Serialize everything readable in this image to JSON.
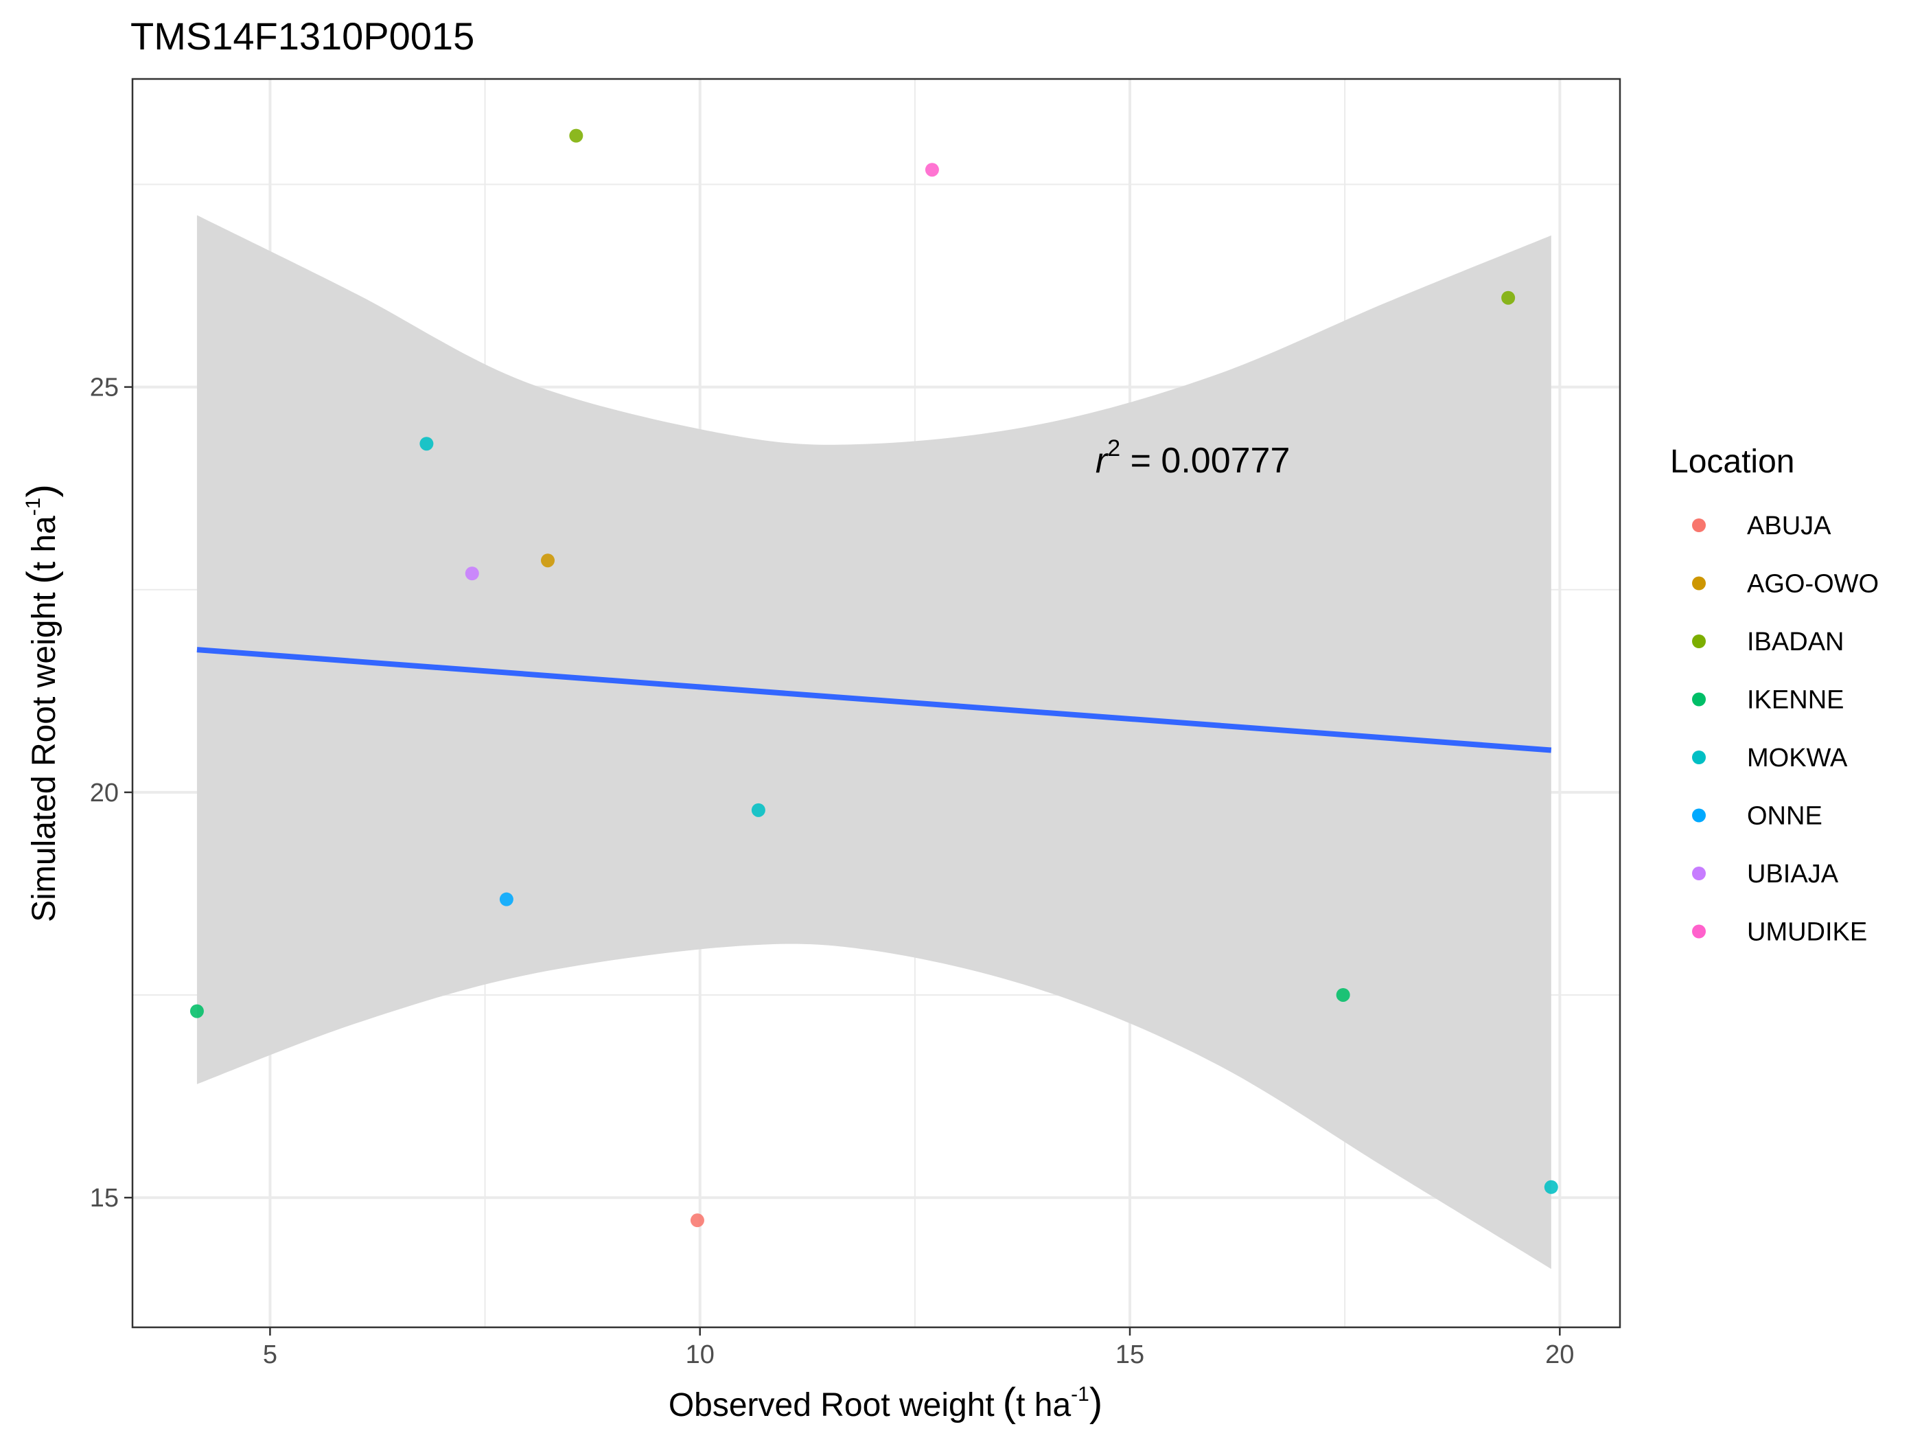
{
  "chart_data": {
    "type": "scatter",
    "title": "TMS14F1310P0015",
    "xlabel": "Observed Root weight",
    "xlabel_unit": "t ha",
    "ylabel": "Simulated Root weight",
    "ylabel_unit": "t ha",
    "unit_exponent": "-1",
    "xlim": [
      3.4,
      20.7
    ],
    "ylim": [
      13.4,
      28.8
    ],
    "x_ticks": [
      5,
      10,
      15,
      20
    ],
    "y_ticks": [
      15,
      20,
      25
    ],
    "x_tick_labels": [
      "5",
      "10",
      "15",
      "20"
    ],
    "y_tick_labels": [
      "15",
      "20",
      "25"
    ],
    "grid": true,
    "legend": {
      "title": "Location",
      "placement": "right",
      "entries": [
        {
          "name": "ABUJA",
          "color": "#F8766D"
        },
        {
          "name": "AGO-OWO",
          "color": "#CD9600"
        },
        {
          "name": "IBADAN",
          "color": "#7CAE00"
        },
        {
          "name": "IKENNE",
          "color": "#00BE67"
        },
        {
          "name": "MOKWA",
          "color": "#00BFC4"
        },
        {
          "name": "ONNE",
          "color": "#00A9FF"
        },
        {
          "name": "UBIAJA",
          "color": "#C77CFF"
        },
        {
          "name": "UMUDIKE",
          "color": "#FF61CC"
        }
      ]
    },
    "points": [
      {
        "location": "ABUJA",
        "x": 9.97,
        "y": 14.72
      },
      {
        "location": "AGO-OWO",
        "x": 8.23,
        "y": 22.86
      },
      {
        "location": "IBADAN",
        "x": 8.56,
        "y": 28.1
      },
      {
        "location": "IBADAN",
        "x": 19.4,
        "y": 26.1
      },
      {
        "location": "IKENNE",
        "x": 4.15,
        "y": 17.3
      },
      {
        "location": "IKENNE",
        "x": 17.48,
        "y": 17.5
      },
      {
        "location": "MOKWA",
        "x": 6.82,
        "y": 24.3
      },
      {
        "location": "MOKWA",
        "x": 10.68,
        "y": 19.78
      },
      {
        "location": "MOKWA",
        "x": 19.9,
        "y": 15.13
      },
      {
        "location": "ONNE",
        "x": 7.75,
        "y": 18.68
      },
      {
        "location": "UBIAJA",
        "x": 7.35,
        "y": 22.7
      },
      {
        "location": "UMUDIKE",
        "x": 12.7,
        "y": 27.68
      }
    ],
    "fit_line": {
      "x": [
        4.15,
        19.9
      ],
      "y": [
        21.76,
        20.52
      ],
      "color": "#3366FF"
    },
    "confidence_band": {
      "color": "#D9D9D9",
      "x": [
        4.15,
        6,
        8,
        10.4,
        12,
        14,
        16,
        18,
        19.9
      ],
      "upper": [
        27.12,
        26.15,
        25.05,
        24.4,
        24.3,
        24.55,
        25.15,
        26.05,
        26.87
      ],
      "lower": [
        16.4,
        17.15,
        17.75,
        18.1,
        18.05,
        17.55,
        16.65,
        15.35,
        14.12
      ]
    },
    "annotation": {
      "r_symbol": "r",
      "exponent": "2",
      "text": " = 0.00777",
      "x": 14.6,
      "y": 24.1
    }
  }
}
